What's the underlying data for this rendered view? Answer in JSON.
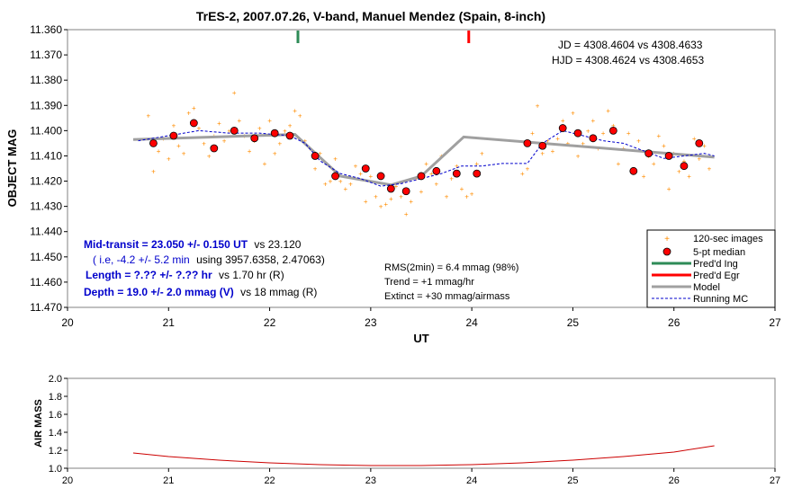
{
  "chart_data": [
    {
      "type": "scatter",
      "title": "TrES-2, 2007.07.26, V-band, Manuel Mendez (Spain, 8-inch)",
      "xlabel": "UT",
      "ylabel": "OBJECT MAG",
      "xlim": [
        20,
        27
      ],
      "ylim": [
        11.36,
        11.47
      ],
      "y_inverted": true,
      "x_ticks": [
        "20",
        "21",
        "22",
        "23",
        "24",
        "25",
        "26",
        "27"
      ],
      "y_ticks": [
        "11.360",
        "11.370",
        "11.380",
        "11.390",
        "11.400",
        "11.410",
        "11.420",
        "11.430",
        "11.440",
        "11.450",
        "11.460",
        "11.470"
      ],
      "grid": false,
      "legend_position": "bottom-right",
      "legend": [
        "120-sec images",
        "5-pt median",
        "Pred'd Ing",
        "Pred'd Egr",
        "Model",
        "Running MC"
      ],
      "colors": {
        "images": "#ff8c00",
        "median_fill": "#ff0000",
        "ingress": "#2e8b57",
        "egress": "#ff0000",
        "model": "#a0a0a0",
        "running_mc": "#0000cc",
        "label_blue": "#0000cc"
      },
      "annotations": {
        "jd": "JD = 4308.4604 vs 4308.4633",
        "hjd": "HJD = 4308.4624 vs 4308.4653",
        "mid_transit_bold": "Mid-transit = 23.050 +/- 0.150 UT",
        "mid_transit_rest": "vs 23.120",
        "ie_blue": "( i.e, -4.2 +/- 5.2 min",
        "ie_rest": "using 3957.6358, 2.47063)",
        "length_bold": "Length = ?.?? +/- ?.?? hr",
        "length_rest": "vs 1.70 hr (R)",
        "depth_bold": "Depth = 19.0 +/- 2.0 mmag (V)",
        "depth_rest": "vs 18 mmag (R)",
        "rms": "RMS(2min) = 6.4 mmag (98%)",
        "trend": "Trend = +1 mmag/hr",
        "extinct": "Extinct = +30 mmag/airmass"
      },
      "ingress_x": 22.28,
      "egress_x": 23.97,
      "model": {
        "x": [
          20.65,
          22.25,
          22.7,
          23.2,
          23.5,
          23.92,
          26.4
        ],
        "y": [
          11.4035,
          11.4015,
          11.418,
          11.4215,
          11.418,
          11.4025,
          11.4105
        ]
      },
      "running_mc": {
        "x": [
          20.7,
          21.0,
          21.3,
          21.6,
          21.9,
          22.2,
          22.35,
          22.5,
          22.7,
          22.9,
          23.1,
          23.3,
          23.5,
          23.7,
          23.9,
          24.1,
          24.3,
          24.55,
          24.7,
          24.9,
          25.1,
          25.3,
          25.5,
          25.7,
          25.9,
          26.1,
          26.3,
          26.4
        ],
        "y": [
          11.404,
          11.402,
          11.4,
          11.401,
          11.401,
          11.402,
          11.405,
          11.412,
          11.417,
          11.419,
          11.422,
          11.421,
          11.419,
          11.417,
          11.414,
          11.414,
          11.413,
          11.413,
          11.405,
          11.4,
          11.402,
          11.404,
          11.405,
          11.408,
          11.411,
          11.41,
          11.409,
          11.41
        ]
      },
      "median": {
        "x": [
          20.85,
          21.05,
          21.25,
          21.45,
          21.65,
          21.85,
          22.05,
          22.2,
          22.45,
          22.65,
          22.95,
          23.1,
          23.2,
          23.35,
          23.5,
          23.65,
          23.85,
          24.05,
          24.55,
          24.7,
          24.9,
          25.05,
          25.2,
          25.4,
          25.6,
          25.75,
          25.95,
          26.1,
          26.25
        ],
        "y": [
          11.405,
          11.402,
          11.397,
          11.407,
          11.4,
          11.403,
          11.401,
          11.402,
          11.41,
          11.418,
          11.415,
          11.418,
          11.423,
          11.424,
          11.418,
          11.416,
          11.417,
          11.417,
          11.405,
          11.406,
          11.399,
          11.401,
          11.403,
          11.4,
          11.416,
          11.409,
          11.41,
          11.414,
          11.405
        ]
      },
      "images": {
        "x": [
          20.8,
          20.85,
          20.9,
          20.95,
          21.0,
          21.05,
          21.1,
          21.15,
          21.2,
          21.25,
          21.3,
          21.35,
          21.4,
          21.45,
          21.5,
          21.55,
          21.6,
          21.65,
          21.7,
          21.75,
          21.8,
          21.85,
          21.9,
          21.95,
          22.0,
          22.05,
          22.1,
          22.15,
          22.2,
          22.25,
          22.3,
          22.35,
          22.4,
          22.45,
          22.5,
          22.55,
          22.6,
          22.65,
          22.7,
          22.75,
          22.8,
          22.85,
          22.9,
          22.95,
          23.0,
          23.05,
          23.1,
          23.15,
          23.2,
          23.25,
          23.3,
          23.35,
          23.4,
          23.45,
          23.5,
          23.55,
          23.6,
          23.65,
          23.7,
          23.75,
          23.8,
          23.85,
          23.9,
          23.95,
          24.0,
          24.05,
          24.1,
          24.5,
          24.55,
          24.6,
          24.65,
          24.7,
          24.75,
          24.8,
          24.85,
          24.9,
          24.95,
          25.0,
          25.05,
          25.1,
          25.15,
          25.2,
          25.25,
          25.3,
          25.35,
          25.4,
          25.45,
          25.5,
          25.55,
          25.6,
          25.65,
          25.7,
          25.75,
          25.8,
          25.85,
          25.9,
          25.95,
          26.0,
          26.05,
          26.1,
          26.15,
          26.2,
          26.25,
          26.3,
          26.35
        ],
        "y": [
          11.394,
          11.416,
          11.408,
          11.403,
          11.411,
          11.398,
          11.406,
          11.409,
          11.393,
          11.391,
          11.399,
          11.405,
          11.41,
          11.402,
          11.397,
          11.404,
          11.4,
          11.385,
          11.396,
          11.402,
          11.408,
          11.404,
          11.399,
          11.413,
          11.396,
          11.409,
          11.405,
          11.4,
          11.398,
          11.392,
          11.394,
          11.404,
          11.407,
          11.415,
          11.409,
          11.421,
          11.42,
          11.411,
          11.42,
          11.423,
          11.421,
          11.414,
          11.417,
          11.428,
          11.418,
          11.426,
          11.43,
          11.429,
          11.427,
          11.422,
          11.426,
          11.433,
          11.428,
          11.419,
          11.424,
          11.413,
          11.417,
          11.421,
          11.41,
          11.426,
          11.419,
          11.414,
          11.423,
          11.426,
          11.425,
          11.413,
          11.409,
          11.417,
          11.415,
          11.401,
          11.39,
          11.409,
          11.404,
          11.408,
          11.403,
          11.396,
          11.405,
          11.393,
          11.41,
          11.405,
          11.4,
          11.396,
          11.407,
          11.401,
          11.392,
          11.398,
          11.413,
          11.407,
          11.401,
          11.416,
          11.404,
          11.418,
          11.41,
          11.413,
          11.402,
          11.406,
          11.423,
          11.409,
          11.416,
          11.412,
          11.418,
          11.403,
          11.411,
          11.406,
          11.415
        ]
      }
    },
    {
      "type": "line",
      "xlabel": "",
      "ylabel": "AIR MASS",
      "xlim": [
        20,
        27
      ],
      "ylim": [
        1.0,
        2.0
      ],
      "x_ticks": [
        "20",
        "21",
        "22",
        "23",
        "24",
        "25",
        "26",
        "27"
      ],
      "y_ticks": [
        "1.0",
        "1.2",
        "1.4",
        "1.6",
        "1.8",
        "2.0"
      ],
      "grid": false,
      "color": "#cc0000",
      "airmass": {
        "x": [
          20.65,
          21.0,
          21.5,
          22.0,
          22.5,
          23.0,
          23.5,
          24.0,
          24.5,
          25.0,
          25.5,
          26.0,
          26.4
        ],
        "y": [
          1.17,
          1.13,
          1.09,
          1.06,
          1.04,
          1.03,
          1.03,
          1.04,
          1.06,
          1.09,
          1.13,
          1.18,
          1.25
        ]
      }
    }
  ]
}
